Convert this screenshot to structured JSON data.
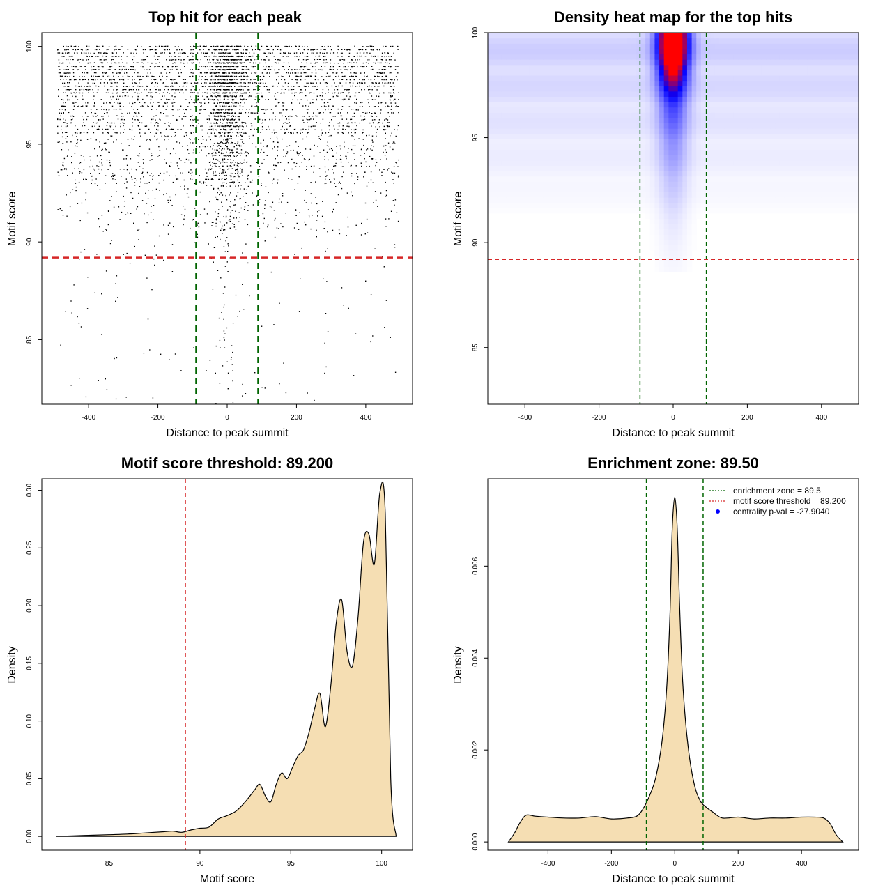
{
  "colors": {
    "threshold_line": "#d62728",
    "zone_line": "#006400",
    "density_fill": "#f5deb3",
    "heat_low": "#ffffff",
    "heat_mid": "#0000ff",
    "heat_high": "#ff0000",
    "points": "#000000",
    "legend_dot": "#0000ff"
  },
  "chart_data": [
    {
      "type": "scatter",
      "title": "Top hit for each peak",
      "xlabel": "Distance to peak summit",
      "ylabel": "Motif score",
      "xlim": [
        -535,
        535
      ],
      "ylim": [
        81.7,
        100.7
      ],
      "xticks": [
        -400,
        -200,
        0,
        200,
        400
      ],
      "yticks": [
        85,
        90,
        95,
        100
      ],
      "vlines": [
        -89.5,
        89.5
      ],
      "hline": 89.2,
      "description": "Each point is the top motif hit of one peak; dense horizontal streaks at high scores (93-100), sparse below the 89.2 threshold, concentrated around 0."
    },
    {
      "type": "heatmap",
      "title": "Density heat map for the top hits",
      "xlabel": "Distance to peak summit",
      "ylabel": "Motif score",
      "xlim": [
        -500,
        500
      ],
      "ylim": [
        82.3,
        100
      ],
      "xticks": [
        -400,
        -200,
        0,
        200,
        400
      ],
      "yticks": [
        85,
        90,
        95,
        100
      ],
      "vlines": [
        -89.5,
        89.5
      ],
      "hline": 89.2,
      "peak": {
        "x": 0,
        "y": 99.5
      }
    },
    {
      "type": "area",
      "title": "Motif score threshold: 89.200",
      "xlabel": "Motif score",
      "ylabel": "Density",
      "xlim": [
        81.3,
        101.7
      ],
      "ylim": [
        -0.012,
        0.31
      ],
      "xticks": [
        85,
        90,
        95,
        100
      ],
      "yticks": [
        0.0,
        0.05,
        0.1,
        0.15,
        0.2,
        0.25,
        0.3
      ],
      "ytick_labels": [
        "0.00",
        "0.05",
        "0.10",
        "0.15",
        "0.20",
        "0.25",
        "0.30"
      ],
      "vline": 89.2,
      "x": [
        82.1,
        83,
        84,
        85,
        86,
        87,
        88,
        88.5,
        89,
        89.5,
        90,
        90.5,
        91,
        91.5,
        92,
        92.5,
        93,
        93.3,
        93.6,
        93.9,
        94.2,
        94.5,
        94.8,
        95.1,
        95.4,
        95.7,
        96.0,
        96.3,
        96.6,
        96.9,
        97.2,
        97.5,
        97.8,
        98.1,
        98.4,
        98.7,
        99.0,
        99.3,
        99.6,
        99.9,
        100.2,
        100.5,
        100.8
      ],
      "y": [
        0.0,
        0.0005,
        0.001,
        0.0015,
        0.002,
        0.003,
        0.004,
        0.0045,
        0.0035,
        0.0055,
        0.007,
        0.008,
        0.015,
        0.018,
        0.022,
        0.03,
        0.04,
        0.045,
        0.035,
        0.03,
        0.045,
        0.055,
        0.05,
        0.06,
        0.07,
        0.075,
        0.09,
        0.11,
        0.124,
        0.095,
        0.13,
        0.185,
        0.205,
        0.16,
        0.148,
        0.19,
        0.255,
        0.262,
        0.236,
        0.298,
        0.28,
        0.05,
        0.0
      ]
    },
    {
      "type": "area",
      "title": "Enrichment zone: 89.50",
      "xlabel": "Distance to peak summit",
      "ylabel": "Density",
      "xlim": [
        -590,
        580
      ],
      "ylim": [
        -0.00018,
        0.0079
      ],
      "xticks": [
        -400,
        -200,
        0,
        200,
        400
      ],
      "yticks": [
        0.0,
        0.002,
        0.004,
        0.006
      ],
      "ytick_labels": [
        "0.000",
        "0.002",
        "0.004",
        "0.006"
      ],
      "vlines": [
        -89.5,
        89.5
      ],
      "x": [
        -525,
        -505,
        -490,
        -470,
        -440,
        -400,
        -350,
        -300,
        -250,
        -200,
        -150,
        -120,
        -100,
        -80,
        -60,
        -40,
        -25,
        -15,
        -8,
        0,
        8,
        15,
        25,
        40,
        60,
        80,
        100,
        120,
        150,
        200,
        250,
        300,
        350,
        400,
        440,
        470,
        490,
        510,
        530
      ],
      "y": [
        0.0,
        0.0002,
        0.0004,
        0.00058,
        0.00056,
        0.00054,
        0.00052,
        0.00052,
        0.00055,
        0.0005,
        0.00052,
        0.00056,
        0.00072,
        0.001,
        0.0014,
        0.0022,
        0.0034,
        0.005,
        0.0068,
        0.0075,
        0.0068,
        0.0052,
        0.0035,
        0.0022,
        0.0013,
        0.0009,
        0.00075,
        0.00065,
        0.00052,
        0.00054,
        0.0005,
        0.00052,
        0.00052,
        0.00054,
        0.00054,
        0.00052,
        0.0004,
        0.00015,
        0.0
      ],
      "legend": {
        "placement": "top-right",
        "entries": [
          {
            "label": "enrichment zone = 89.5",
            "symbol": "dotted-line",
            "color": "#006400"
          },
          {
            "label": "motif score threshold = 89.200",
            "symbol": "dotted-line",
            "color": "#d62728"
          },
          {
            "label": "centrality p-val = -27.9040",
            "symbol": "dot",
            "color": "#0000ff"
          }
        ]
      }
    }
  ]
}
